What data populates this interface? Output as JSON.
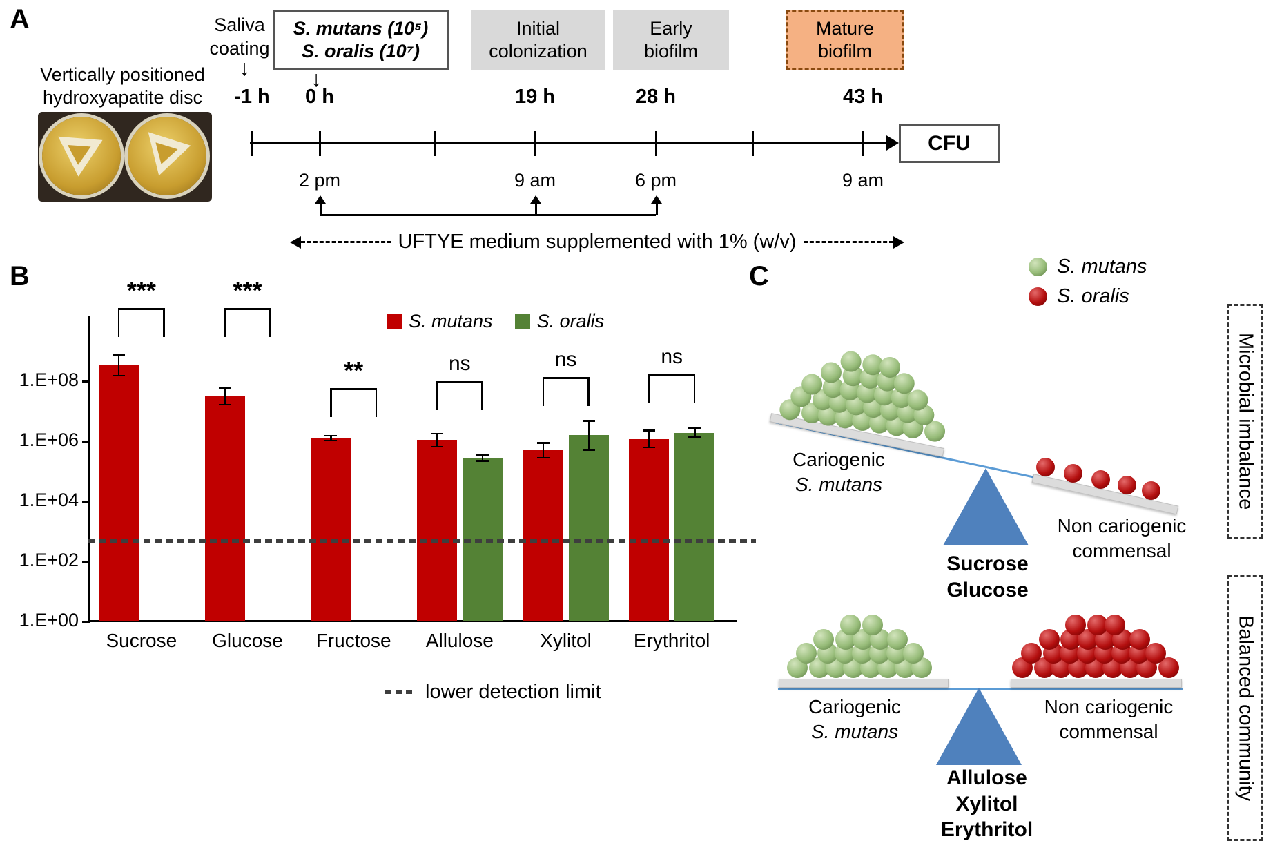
{
  "colors": {
    "s_mutans_red": "#C00000",
    "s_oralis_green": "#548235",
    "stage_box_gray": "#D9D9D9",
    "mature_box_orange": "#F5B183",
    "fulcrum_blue": "#4F81BD"
  },
  "panelA": {
    "label": "A",
    "disc_caption": "Vertically positioned hydroxyapatite disc",
    "saliva_label": "Saliva coating",
    "inoculum_line1": "S. mutans (10⁵)",
    "inoculum_line2": "S. oralis (10⁷)",
    "stage_boxes": [
      "Initial colonization",
      "Early biofilm",
      "Mature biofilm"
    ],
    "timepoints": [
      "-1 h",
      "0 h",
      "19 h",
      "28 h",
      "43 h"
    ],
    "clock_times": [
      "2 pm",
      "9 am",
      "6 pm",
      "9 am"
    ],
    "cfu_label": "CFU",
    "medium_label": "UFTYE medium supplemented with 1% (w/v)"
  },
  "panelB": {
    "label": "B"
  },
  "chart_data": {
    "type": "bar",
    "title": "",
    "xlabel": "",
    "ylabel": "",
    "categories": [
      "Sucrose",
      "Glucose",
      "Fructose",
      "Allulose",
      "Xylitol",
      "Erythritol"
    ],
    "series": [
      {
        "name": "S. mutans",
        "color": "#C00000",
        "values": [
          350000000.0,
          32000000.0,
          1300000.0,
          1100000.0,
          500000.0,
          1200000.0
        ],
        "errors_log10": [
          0.35,
          0.28,
          0.08,
          0.22,
          0.25,
          0.28
        ]
      },
      {
        "name": "S. oralis",
        "color": "#548235",
        "values": [
          null,
          null,
          null,
          280000.0,
          1600000.0,
          1900000.0
        ],
        "errors_log10": [
          null,
          null,
          null,
          0.1,
          0.48,
          0.15
        ]
      }
    ],
    "significance": [
      "***",
      "***",
      "**",
      "ns",
      "ns",
      "ns"
    ],
    "y_tick_labels": [
      "1.E+08",
      "1.E+06",
      "1.E+04",
      "1.E+02",
      "1.E+00"
    ],
    "y_scale": "log10",
    "ylim_log10": [
      0,
      9
    ],
    "grid": false,
    "legend_position": "top-right-inside",
    "detection_limit_value": 500,
    "detection_limit_label": "lower detection limit"
  },
  "panelC": {
    "label": "C",
    "legend": {
      "mutans": "S. mutans",
      "oralis": "S. oralis"
    },
    "imbalance": {
      "side_label": "Microbial imbalance",
      "left_label_line1": "Cariogenic",
      "left_label_line2": "S. mutans",
      "right_label_line1": "Non cariogenic",
      "right_label_line2": "commensal",
      "sugars": [
        "Sucrose",
        "Glucose"
      ]
    },
    "balanced": {
      "side_label": "Balanced community",
      "left_label_line1": "Cariogenic",
      "left_label_line2": "S. mutans",
      "right_label_line1": "Non cariogenic",
      "right_label_line2": "commensal",
      "sugars": [
        "Allulose",
        "Xylitol",
        "Erythritol"
      ]
    }
  }
}
